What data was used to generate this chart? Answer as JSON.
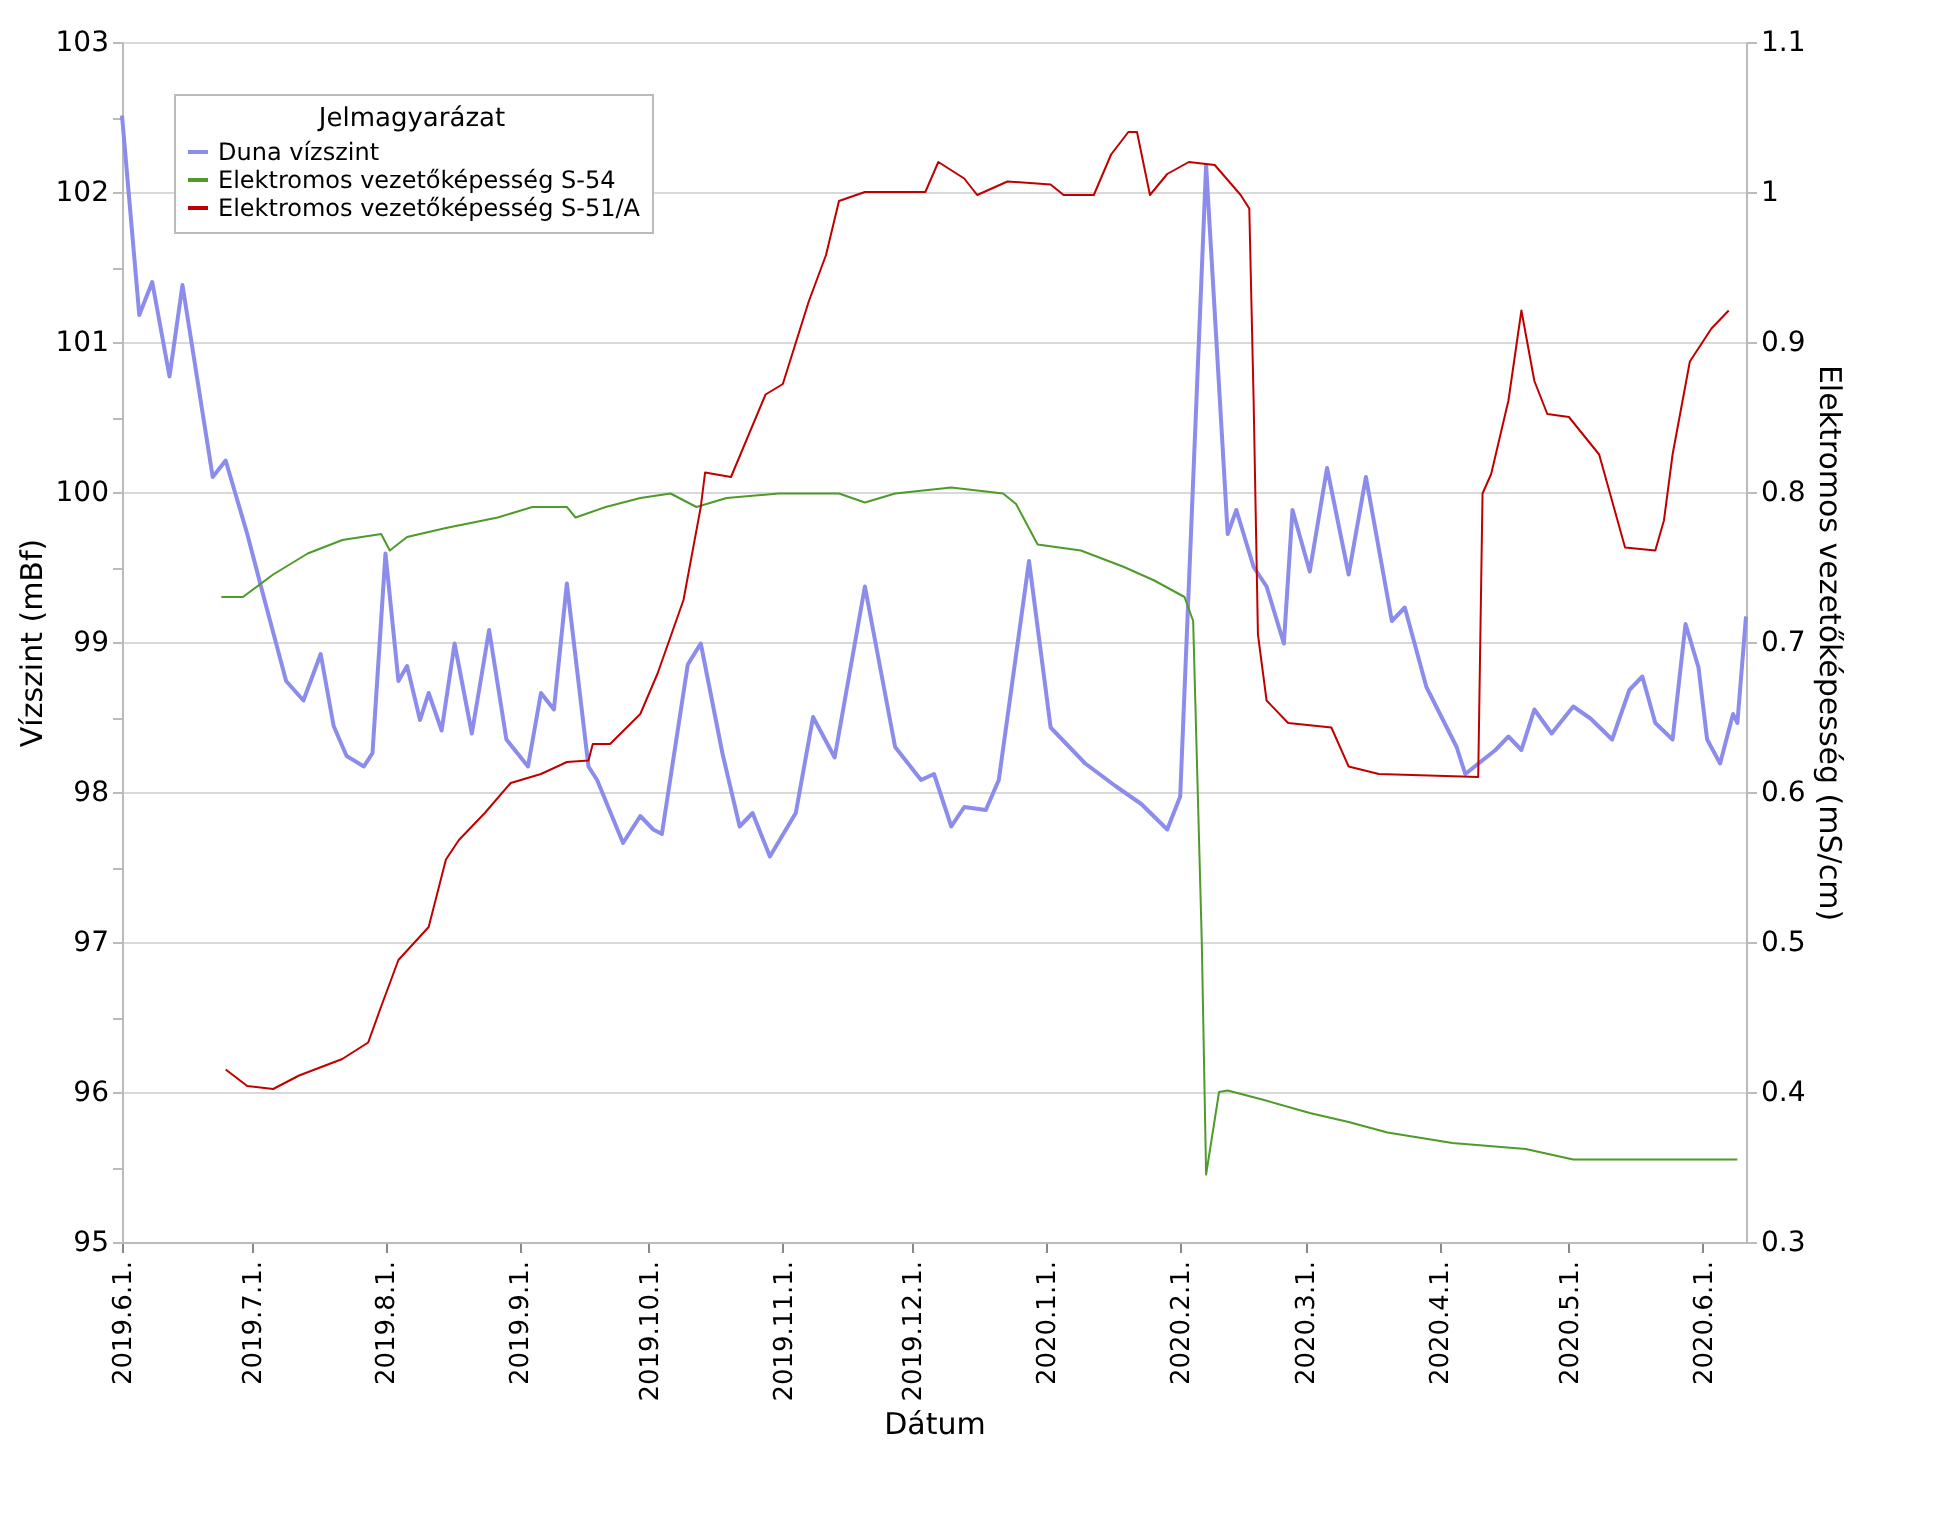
{
  "chart_data": {
    "type": "line",
    "xlabel": "Dátum",
    "ylabel": "Vízszint (mBf)",
    "y2label": "Elektromos vezetőképesség (mS/cm)",
    "legend_title": "Jelmagyarázat",
    "legend": "top left",
    "grid": "y",
    "marker": "none",
    "line_style": "solid",
    "xlim": [
      "2019-06-01",
      "2020-06-11"
    ],
    "xticks": [
      {
        "value": "2019-06-01",
        "label": "2019.6.1."
      },
      {
        "value": "2019-07-01",
        "label": "2019.7.1."
      },
      {
        "value": "2019-08-01",
        "label": "2019.8.1."
      },
      {
        "value": "2019-09-01",
        "label": "2019.9.1."
      },
      {
        "value": "2019-10-01",
        "label": "2019.10.1."
      },
      {
        "value": "2019-11-01",
        "label": "2019.11.1."
      },
      {
        "value": "2019-12-01",
        "label": "2019.12.1."
      },
      {
        "value": "2020-01-01",
        "label": "2020.1.1."
      },
      {
        "value": "2020-02-01",
        "label": "2020.2.1."
      },
      {
        "value": "2020-03-01",
        "label": "2020.3.1."
      },
      {
        "value": "2020-04-01",
        "label": "2020.4.1."
      },
      {
        "value": "2020-05-01",
        "label": "2020.5.1."
      },
      {
        "value": "2020-06-01",
        "label": "2020.6.1."
      }
    ],
    "ylim": [
      95,
      103
    ],
    "yticks": [
      95,
      {
        "value": 95.5,
        "label": null
      },
      96,
      {
        "value": 96.5,
        "label": null
      },
      97,
      {
        "value": 97.5,
        "label": null
      },
      98,
      {
        "value": 98.5,
        "label": null
      },
      99,
      {
        "value": 99.5,
        "label": null
      },
      100,
      {
        "value": 100.5,
        "label": null
      },
      101,
      {
        "value": 101.5,
        "label": null
      },
      102,
      {
        "value": 102.5,
        "label": null
      },
      103
    ],
    "y2lim": [
      0.3,
      1.1
    ],
    "y2ticks": [
      0.3,
      {
        "value": 0.35,
        "label": null
      },
      0.4,
      {
        "value": 0.45,
        "label": null
      },
      0.5,
      {
        "value": 0.55,
        "label": null
      },
      0.6,
      {
        "value": 0.65,
        "label": null
      },
      0.7,
      {
        "value": 0.75,
        "label": null
      },
      0.8,
      {
        "value": 0.85,
        "label": null
      },
      0.9,
      {
        "value": 0.95,
        "label": null
      },
      1,
      {
        "value": 1.05,
        "label": null
      },
      1.1
    ],
    "series": [
      {
        "name": "Duna vízszint",
        "color": "#8c8cec",
        "x": [
          "2019-06-01",
          "2019-06-05",
          "2019-06-08",
          "2019-06-12",
          "2019-06-15",
          "2019-06-22",
          "2019-06-25",
          "2019-06-30",
          "2019-07-04",
          "2019-07-09",
          "2019-07-13",
          "2019-07-17",
          "2019-07-20",
          "2019-07-23",
          "2019-07-27",
          "2019-07-29",
          "2019-08-01",
          "2019-08-04",
          "2019-08-06",
          "2019-08-09",
          "2019-08-11",
          "2019-08-14",
          "2019-08-17",
          "2019-08-21",
          "2019-08-25",
          "2019-08-29",
          "2019-09-03",
          "2019-09-06",
          "2019-09-09",
          "2019-09-12",
          "2019-09-17",
          "2019-09-19",
          "2019-09-25",
          "2019-09-29",
          "2019-10-02",
          "2019-10-04",
          "2019-10-10",
          "2019-10-13",
          "2019-10-18",
          "2019-10-22",
          "2019-10-25",
          "2019-10-29",
          "2019-11-04",
          "2019-11-08",
          "2019-11-13",
          "2019-11-20",
          "2019-11-27",
          "2019-12-03",
          "2019-12-06",
          "2019-12-10",
          "2019-12-13",
          "2019-12-18",
          "2019-12-21",
          "2019-12-28",
          "2020-01-02",
          "2020-01-10",
          "2020-01-17",
          "2020-01-23",
          "2020-01-29",
          "2020-02-01",
          "2020-02-07",
          "2020-02-12",
          "2020-02-14",
          "2020-02-18",
          "2020-02-21",
          "2020-02-25",
          "2020-02-27",
          "2020-03-02",
          "2020-03-06",
          "2020-03-11",
          "2020-03-15",
          "2020-03-21",
          "2020-03-24",
          "2020-03-29",
          "2020-04-05",
          "2020-04-07",
          "2020-04-14",
          "2020-04-17",
          "2020-04-20",
          "2020-04-23",
          "2020-04-27",
          "2020-05-02",
          "2020-05-06",
          "2020-05-11",
          "2020-05-15",
          "2020-05-18",
          "2020-05-21",
          "2020-05-25",
          "2020-05-28",
          "2020-05-31",
          "2020-06-02",
          "2020-06-05",
          "2020-06-08",
          "2020-06-09",
          "2020-06-11"
        ],
        "values": [
          102.51,
          101.18,
          101.4,
          100.77,
          101.38,
          100.1,
          100.21,
          99.72,
          99.28,
          98.74,
          98.61,
          98.92,
          98.44,
          98.24,
          98.17,
          98.26,
          99.59,
          98.74,
          98.84,
          98.48,
          98.66,
          98.41,
          98.99,
          98.39,
          99.08,
          98.35,
          98.17,
          98.66,
          98.55,
          99.39,
          98.17,
          98.08,
          97.66,
          97.84,
          97.75,
          97.72,
          98.85,
          98.99,
          98.26,
          97.77,
          97.86,
          97.57,
          97.86,
          98.5,
          98.23,
          99.37,
          98.3,
          98.08,
          98.12,
          97.77,
          97.9,
          97.88,
          98.08,
          99.54,
          98.43,
          98.19,
          98.04,
          97.92,
          97.75,
          97.97,
          102.18,
          99.72,
          99.88,
          99.5,
          99.37,
          98.99,
          99.88,
          99.47,
          100.16,
          99.45,
          100.1,
          99.14,
          99.23,
          98.7,
          98.3,
          98.12,
          98.28,
          98.37,
          98.28,
          98.55,
          98.39,
          98.57,
          98.49,
          98.35,
          98.68,
          98.77,
          98.46,
          98.35,
          99.12,
          98.83,
          98.35,
          98.19,
          98.52,
          98.46,
          99.17
        ]
      },
      {
        "name": "Elektromos vezetőképesség S-54",
        "color": "#4e9a2a",
        "axis": "y2",
        "x": [
          "2019-06-24",
          "2019-06-29",
          "2019-07-06",
          "2019-07-14",
          "2019-07-22",
          "2019-07-31",
          "2019-08-02",
          "2019-08-06",
          "2019-08-15",
          "2019-08-27",
          "2019-09-04",
          "2019-09-12",
          "2019-09-14",
          "2019-09-21",
          "2019-09-29",
          "2019-10-06",
          "2019-10-12",
          "2019-10-19",
          "2019-10-31",
          "2019-11-14",
          "2019-11-20",
          "2019-11-27",
          "2019-12-10",
          "2019-12-22",
          "2019-12-25",
          "2019-12-30",
          "2020-01-09",
          "2020-01-19",
          "2020-01-26",
          "2020-02-02",
          "2020-02-04",
          "2020-02-06",
          "2020-02-07",
          "2020-02-10",
          "2020-02-12",
          "2020-02-20",
          "2020-03-02",
          "2020-03-11",
          "2020-03-20",
          "2020-04-04",
          "2020-04-21",
          "2020-05-02",
          "2020-06-09"
        ],
        "values": [
          0.73,
          0.73,
          0.745,
          0.759,
          0.768,
          0.772,
          0.761,
          0.77,
          0.776,
          0.783,
          0.79,
          0.79,
          0.783,
          0.79,
          0.796,
          0.799,
          0.79,
          0.796,
          0.799,
          0.799,
          0.793,
          0.799,
          0.803,
          0.799,
          0.792,
          0.765,
          0.761,
          0.75,
          0.741,
          0.73,
          0.714,
          0.5,
          0.345,
          0.4,
          0.401,
          0.395,
          0.386,
          0.38,
          0.373,
          0.366,
          0.362,
          0.355,
          0.355
        ]
      },
      {
        "name": "Elektromos vezetőképesség S-51/A",
        "color": "#c00000",
        "axis": "y2",
        "x": [
          "2019-06-25",
          "2019-06-30",
          "2019-07-06",
          "2019-07-12",
          "2019-07-22",
          "2019-07-28",
          "2019-07-31",
          "2019-08-04",
          "2019-08-11",
          "2019-08-15",
          "2019-08-18",
          "2019-08-24",
          "2019-08-30",
          "2019-09-06",
          "2019-09-12",
          "2019-09-17",
          "2019-09-18",
          "2019-09-22",
          "2019-09-29",
          "2019-10-03",
          "2019-10-09",
          "2019-10-13",
          "2019-10-14",
          "2019-10-20",
          "2019-10-28",
          "2019-11-01",
          "2019-11-07",
          "2019-11-11",
          "2019-11-14",
          "2019-11-20",
          "2019-12-04",
          "2019-12-07",
          "2019-12-13",
          "2019-12-16",
          "2019-12-23",
          "2020-01-02",
          "2020-01-05",
          "2020-01-12",
          "2020-01-16",
          "2020-01-20",
          "2020-01-22",
          "2020-01-25",
          "2020-01-29",
          "2020-02-03",
          "2020-02-09",
          "2020-02-15",
          "2020-02-17",
          "2020-02-18",
          "2020-02-19",
          "2020-02-21",
          "2020-02-26",
          "2020-03-07",
          "2020-03-11",
          "2020-03-18",
          "2020-04-10",
          "2020-04-11",
          "2020-04-13",
          "2020-04-17",
          "2020-04-20",
          "2020-04-23",
          "2020-04-26",
          "2020-05-01",
          "2020-05-08",
          "2020-05-14",
          "2020-05-21",
          "2020-05-23",
          "2020-05-25",
          "2020-05-29",
          "2020-06-03",
          "2020-06-07"
        ],
        "values": [
          0.415,
          0.404,
          0.402,
          0.411,
          0.422,
          0.433,
          0.457,
          0.488,
          0.51,
          0.555,
          0.568,
          0.586,
          0.606,
          0.612,
          0.62,
          0.621,
          0.632,
          0.632,
          0.652,
          0.679,
          0.728,
          0.79,
          0.813,
          0.81,
          0.865,
          0.872,
          0.927,
          0.958,
          0.994,
          1.0,
          1.0,
          1.02,
          1.009,
          0.998,
          1.007,
          1.005,
          0.998,
          0.998,
          1.025,
          1.04,
          1.04,
          0.998,
          1.012,
          1.02,
          1.018,
          0.998,
          0.989,
          0.861,
          0.705,
          0.661,
          0.646,
          0.643,
          0.617,
          0.612,
          0.61,
          0.799,
          0.812,
          0.861,
          0.921,
          0.874,
          0.852,
          0.85,
          0.825,
          0.763,
          0.761,
          0.781,
          0.825,
          0.887,
          0.909,
          0.921
        ]
      }
    ]
  }
}
